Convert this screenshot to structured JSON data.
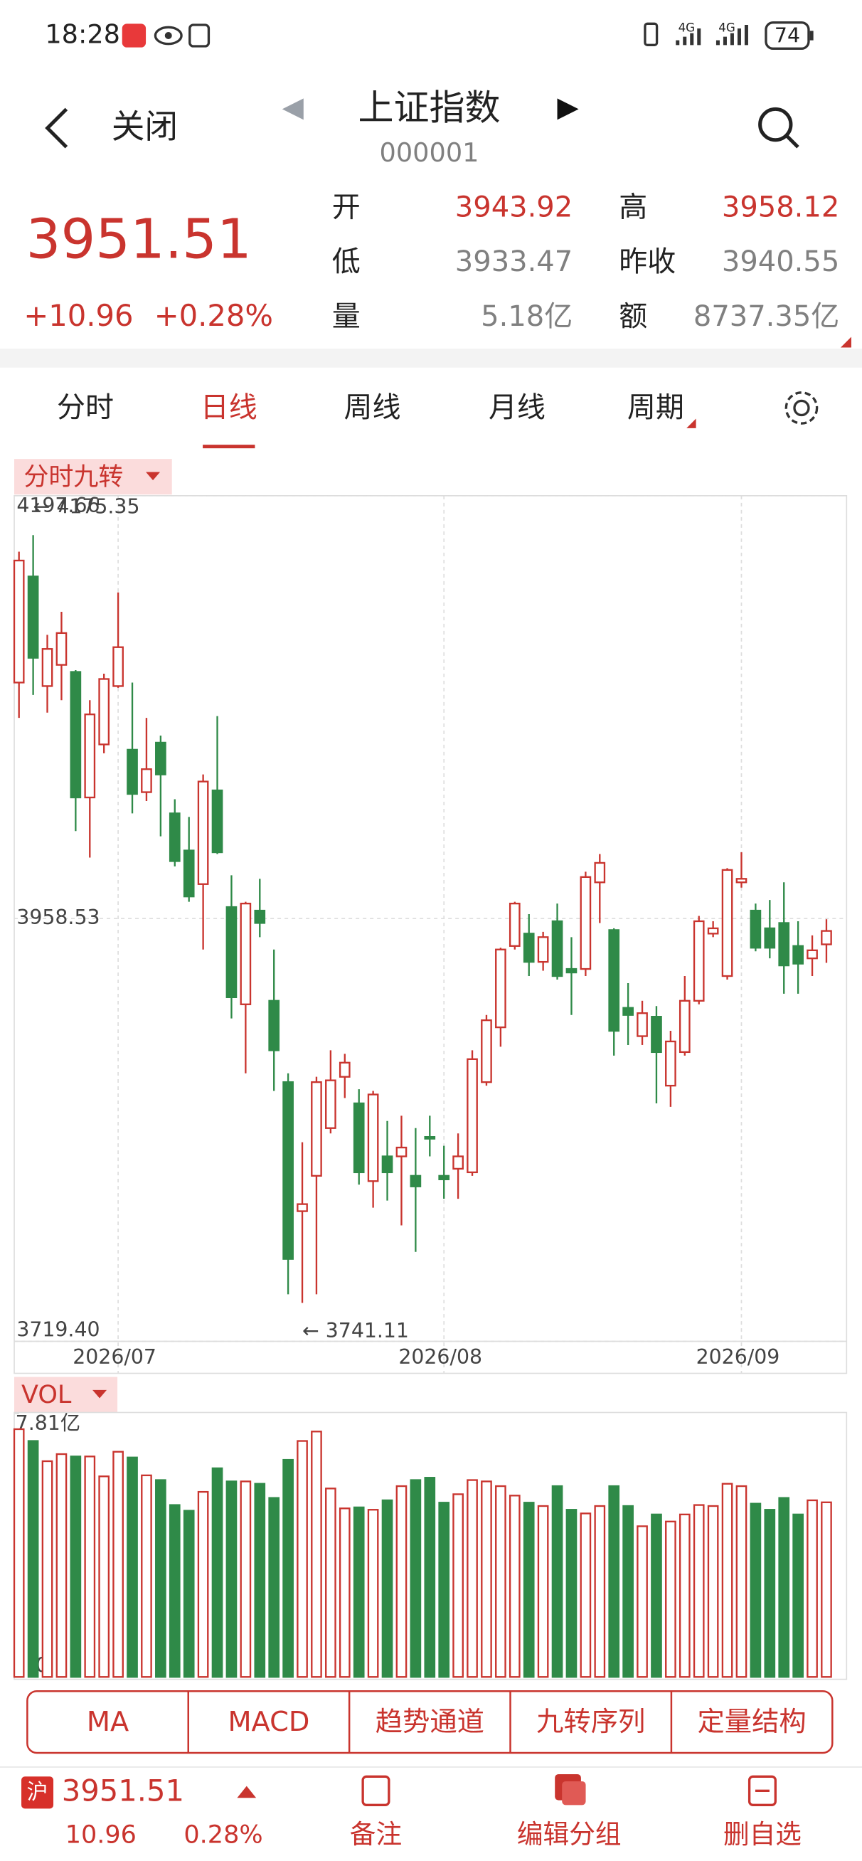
{
  "status_bar": {
    "time": "18:28",
    "network": [
      "4G",
      "4G"
    ],
    "battery": "74"
  },
  "header": {
    "back": "关闭",
    "title": "上证指数",
    "code": "000001"
  },
  "quote": {
    "price": "3951.51",
    "change": "+10.96",
    "change_pct": "+0.28%",
    "stats": [
      {
        "label": "开",
        "value": "3943.92"
      },
      {
        "label": "高",
        "value": "3958.12"
      },
      {
        "label": "低",
        "value": "3933.47"
      },
      {
        "label": "昨收",
        "value": "3940.55"
      },
      {
        "label": "量",
        "value": "5.18亿"
      },
      {
        "label": "额",
        "value": "8737.35亿"
      }
    ]
  },
  "tabs": [
    "分时",
    "日线",
    "周线",
    "月线",
    "周期"
  ],
  "chart_data": {
    "type": "candlestick",
    "indicator": "分时九转",
    "categories": [
      null,
      null,
      null,
      null,
      null,
      null,
      null,
      "2026/07",
      null,
      null,
      null,
      null,
      null,
      null,
      null,
      null,
      null,
      null,
      null,
      null,
      null,
      null,
      null,
      null,
      null,
      null,
      null,
      null,
      null,
      null,
      "2026/08",
      null,
      null,
      null,
      null,
      null,
      null,
      null,
      null,
      null,
      null,
      null,
      null,
      null,
      null,
      null,
      null,
      null,
      null,
      null,
      null,
      "2026/09",
      null,
      null,
      null,
      null,
      null,
      null
    ],
    "open": [
      4092,
      4152,
      4090,
      4102,
      4098,
      4027,
      4057,
      4090,
      4054,
      4030,
      4058,
      4018,
      3997,
      3978,
      4031,
      3965,
      3910,
      3963,
      3912,
      3866,
      3793,
      3813,
      3840,
      3869,
      3854,
      3810,
      3824,
      3824,
      3813,
      3835,
      3813,
      3817,
      3815,
      3866,
      3897,
      3943,
      3950,
      3934,
      3957,
      3930,
      3930,
      3979,
      3952,
      3908,
      3892,
      3903,
      3864,
      3883,
      3912,
      3950,
      3926,
      3979,
      3963,
      3953,
      3956,
      3943,
      3936,
      3943.92
    ],
    "high": [
      4166,
      4175.35,
      4119,
      4132,
      4099,
      4082,
      4097,
      4143,
      4092,
      4072,
      4062,
      4026,
      4016,
      4040,
      4073,
      3983,
      3968,
      3981,
      3941,
      3871,
      3832,
      3869,
      3884,
      3882,
      3862,
      3861,
      3844,
      3847,
      3840,
      3847,
      3830,
      3837,
      3884,
      3904,
      3942,
      3968,
      3961,
      3951,
      3967,
      3948,
      3985,
      3995,
      3953,
      3922,
      3912,
      3909,
      3895,
      3926,
      3960,
      3957,
      3987,
      3996,
      3967,
      3969,
      3979,
      3957,
      3949,
      3958.12
    ],
    "low": [
      4072,
      4085,
      4075,
      4082,
      4008,
      3993,
      4052,
      4089,
      4018,
      4025,
      4005,
      3988,
      3968,
      3941,
      3995,
      3902,
      3871,
      3948,
      3861,
      3746,
      3741.11,
      3746,
      3837,
      3857,
      3808,
      3795,
      3799,
      3785,
      3770,
      3824,
      3800,
      3800,
      3813,
      3864,
      3886,
      3941,
      3926,
      3929,
      3924,
      3904,
      3926,
      3956,
      3881,
      3887,
      3887,
      3854,
      3852,
      3881,
      3910,
      3948,
      3924,
      3976,
      3940,
      3936,
      3916,
      3916,
      3926,
      3933.47
    ],
    "close": [
      4161,
      4106,
      4111,
      4120,
      4027,
      4074,
      4094,
      4112,
      4029,
      4043,
      4040,
      3991,
      3971,
      4036,
      3996,
      3914,
      3967,
      3956,
      3884,
      3766,
      3797,
      3866,
      3867,
      3877,
      3815,
      3859,
      3815,
      3829,
      3807,
      3834,
      3811,
      3824,
      3879,
      3901,
      3941,
      3967,
      3934,
      3948,
      3926,
      3928,
      3982,
      3990,
      3895,
      3904,
      3905,
      3883,
      3889,
      3912,
      3957,
      3953,
      3986,
      3981,
      3942,
      3942,
      3932,
      3933,
      3940.55,
      3951.51
    ],
    "ylim": [
      3719.4,
      4197.66
    ],
    "yticks": [
      {
        "value": 3719.4,
        "label": "3719.40"
      },
      3958.53,
      4197.66
    ],
    "grid": true,
    "up_color": "#c9342e",
    "down_color": "#2f8a48",
    "annotations": {
      "high": "← 4175.35",
      "low": "← 3741.11"
    },
    "volume": {
      "name": "VOL",
      "values": [
        7.35,
        7.0,
        6.4,
        6.61,
        6.54,
        6.54,
        5.95,
        6.68,
        6.51,
        5.98,
        5.84,
        5.1,
        4.93,
        5.49,
        6.19,
        5.8,
        5.8,
        5.73,
        5.31,
        6.44,
        7.0,
        7.28,
        5.59,
        5.0,
        5.03,
        4.96,
        5.24,
        5.66,
        5.84,
        5.91,
        5.17,
        5.42,
        5.84,
        5.8,
        5.66,
        5.38,
        5.17,
        5.07,
        5.66,
        4.96,
        4.85,
        5.07,
        5.66,
        5.07,
        4.47,
        4.82,
        4.61,
        4.82,
        5.1,
        5.07,
        5.73,
        5.66,
        5.14,
        4.96,
        5.31,
        4.82,
        5.24,
        5.18
      ],
      "ylim": [
        0,
        7.81
      ],
      "yticks": [
        0,
        {
          "value": 7.81,
          "label": "7.81亿"
        }
      ]
    }
  },
  "tool_buttons": [
    "MA",
    "MACD",
    "趋势通道",
    "九转序列",
    "定量结构"
  ],
  "footer": {
    "market": "沪",
    "price": "3951.51",
    "change": "10.96",
    "change_pct": "0.28%",
    "actions": [
      "备注",
      "编辑分组",
      "删自选"
    ]
  }
}
